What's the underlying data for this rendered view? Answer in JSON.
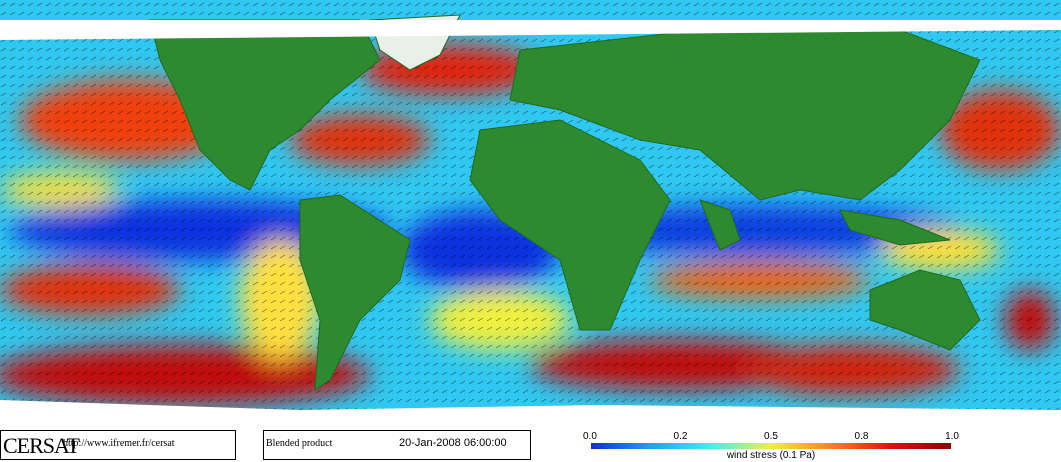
{
  "footer": {
    "brand": "CERSAT",
    "url": "http://www.ifremer.fr/cersat",
    "product": "Blended product",
    "date": "20-Jan-2008 06:00:00"
  },
  "colorbar": {
    "ticks": [
      "0.0",
      "0.2",
      "0.5",
      "0.8",
      "1.0"
    ],
    "label": "wind stress (0.1 Pa)"
  }
}
